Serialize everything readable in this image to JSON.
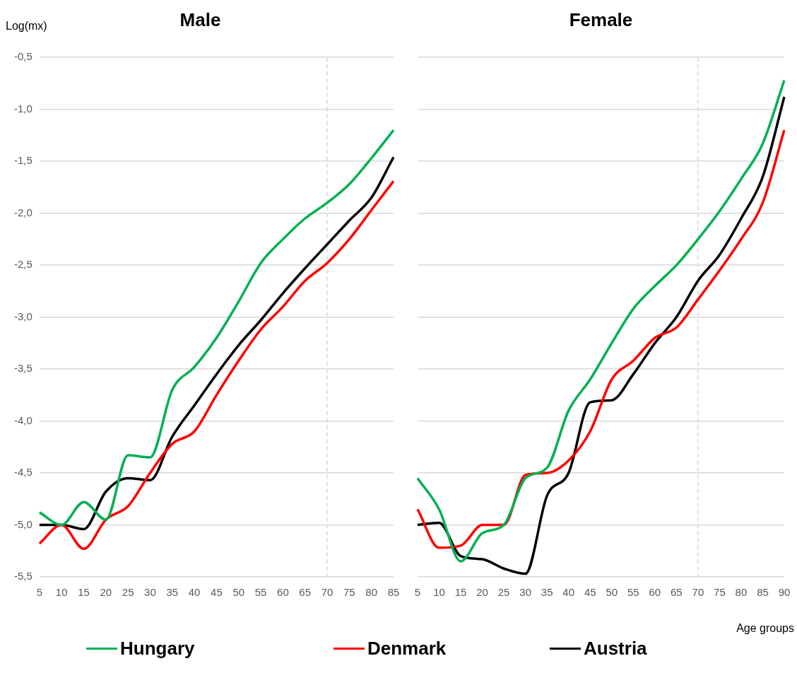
{
  "chart_data": [
    {
      "type": "line",
      "title": "Male",
      "ylabel": "Log(mx)",
      "categories": [
        "5",
        "10",
        "15",
        "20",
        "25",
        "30",
        "35",
        "40",
        "45",
        "50",
        "55",
        "60",
        "65",
        "70",
        "75",
        "80",
        "85"
      ],
      "series": [
        {
          "name": "Hungary",
          "color": "#00b050",
          "values": [
            -4.88,
            -5.0,
            -4.78,
            -4.95,
            -4.33,
            -4.35,
            -3.7,
            -3.48,
            -3.2,
            -2.85,
            -2.48,
            -2.25,
            -2.05,
            -1.9,
            -1.72,
            -1.47,
            -1.2
          ]
        },
        {
          "name": "Denmark",
          "color": "#ff0000",
          "values": [
            -5.18,
            -5.0,
            -5.23,
            -4.95,
            -4.82,
            -4.5,
            -4.22,
            -4.1,
            -3.75,
            -3.42,
            -3.12,
            -2.9,
            -2.65,
            -2.48,
            -2.25,
            -1.97,
            -1.69
          ]
        },
        {
          "name": "Austria",
          "color": "#000000",
          "values": [
            -5.0,
            -5.0,
            -5.04,
            -4.68,
            -4.55,
            -4.57,
            -4.15,
            -3.85,
            -3.55,
            -3.27,
            -3.03,
            -2.77,
            -2.53,
            -2.3,
            -2.07,
            -1.85,
            -1.46
          ]
        }
      ],
      "ylim": [
        -5.5,
        -0.5
      ],
      "yticks": [
        {
          "value": -5.5,
          "label": "-5,5"
        },
        {
          "value": -5.0,
          "label": "-5,0"
        },
        {
          "value": -4.5,
          "label": "-4,5"
        },
        {
          "value": -4.0,
          "label": "-4,0"
        },
        {
          "value": -3.5,
          "label": "-3,5"
        },
        {
          "value": -3.0,
          "label": "-3,0"
        },
        {
          "value": -2.5,
          "label": "-2,5"
        },
        {
          "value": -2.0,
          "label": "-2,0"
        },
        {
          "value": -1.5,
          "label": "-1,5"
        },
        {
          "value": -1.0,
          "label": "-1,0"
        },
        {
          "value": -0.5,
          "label": "-0,5"
        }
      ],
      "ref_lines": [
        {
          "axis": "x",
          "value": "70",
          "color": "#d9d9d9",
          "line_style": "dashed"
        }
      ],
      "grid": "y",
      "legend": "bottom",
      "marker": "none",
      "line_style": "solid"
    },
    {
      "type": "line",
      "title": "Female",
      "xlabel": "Age groups",
      "categories": [
        "5",
        "10",
        "15",
        "20",
        "25",
        "30",
        "35",
        "40",
        "45",
        "50",
        "55",
        "60",
        "65",
        "70",
        "75",
        "80",
        "85",
        "90"
      ],
      "series": [
        {
          "color": "#00b050",
          "values": [
            -4.55,
            -4.85,
            -5.35,
            -5.08,
            -5.0,
            -4.55,
            -4.45,
            -3.9,
            -3.6,
            -3.25,
            -2.92,
            -2.7,
            -2.5,
            -2.25,
            -1.98,
            -1.67,
            -1.33,
            -0.72
          ]
        },
        {
          "color": "#ff0000",
          "values": [
            -4.85,
            -5.22,
            -5.2,
            -5.0,
            -5.0,
            -4.52,
            -4.5,
            -4.38,
            -4.1,
            -3.6,
            -3.42,
            -3.2,
            -3.1,
            -2.83,
            -2.55,
            -2.25,
            -1.9,
            -1.2
          ]
        },
        {
          "color": "#000000",
          "values": [
            -5.0,
            -4.98,
            -5.3,
            -5.33,
            -5.42,
            -5.47,
            -4.72,
            -4.5,
            -3.82,
            -3.8,
            -3.55,
            -3.25,
            -3.0,
            -2.65,
            -2.4,
            -2.05,
            -1.65,
            -0.88
          ]
        }
      ],
      "ylim": [
        -5.5,
        -0.5
      ],
      "yticks": [
        {
          "value": -5.5,
          "label": null
        },
        {
          "value": -5.0,
          "label": null
        },
        {
          "value": -4.5,
          "label": null
        },
        {
          "value": -4.0,
          "label": null
        },
        {
          "value": -3.5,
          "label": null
        },
        {
          "value": -3.0,
          "label": null
        },
        {
          "value": -2.5,
          "label": null
        },
        {
          "value": -2.0,
          "label": null
        },
        {
          "value": -1.5,
          "label": null
        },
        {
          "value": -1.0,
          "label": null
        },
        {
          "value": -0.5,
          "label": null
        }
      ],
      "ref_lines": [
        {
          "axis": "x",
          "value": "70",
          "color": "#d9d9d9",
          "line_style": "dashed"
        }
      ],
      "grid": "y",
      "tick_labels": "x",
      "marker": "none",
      "line_style": "solid"
    }
  ]
}
